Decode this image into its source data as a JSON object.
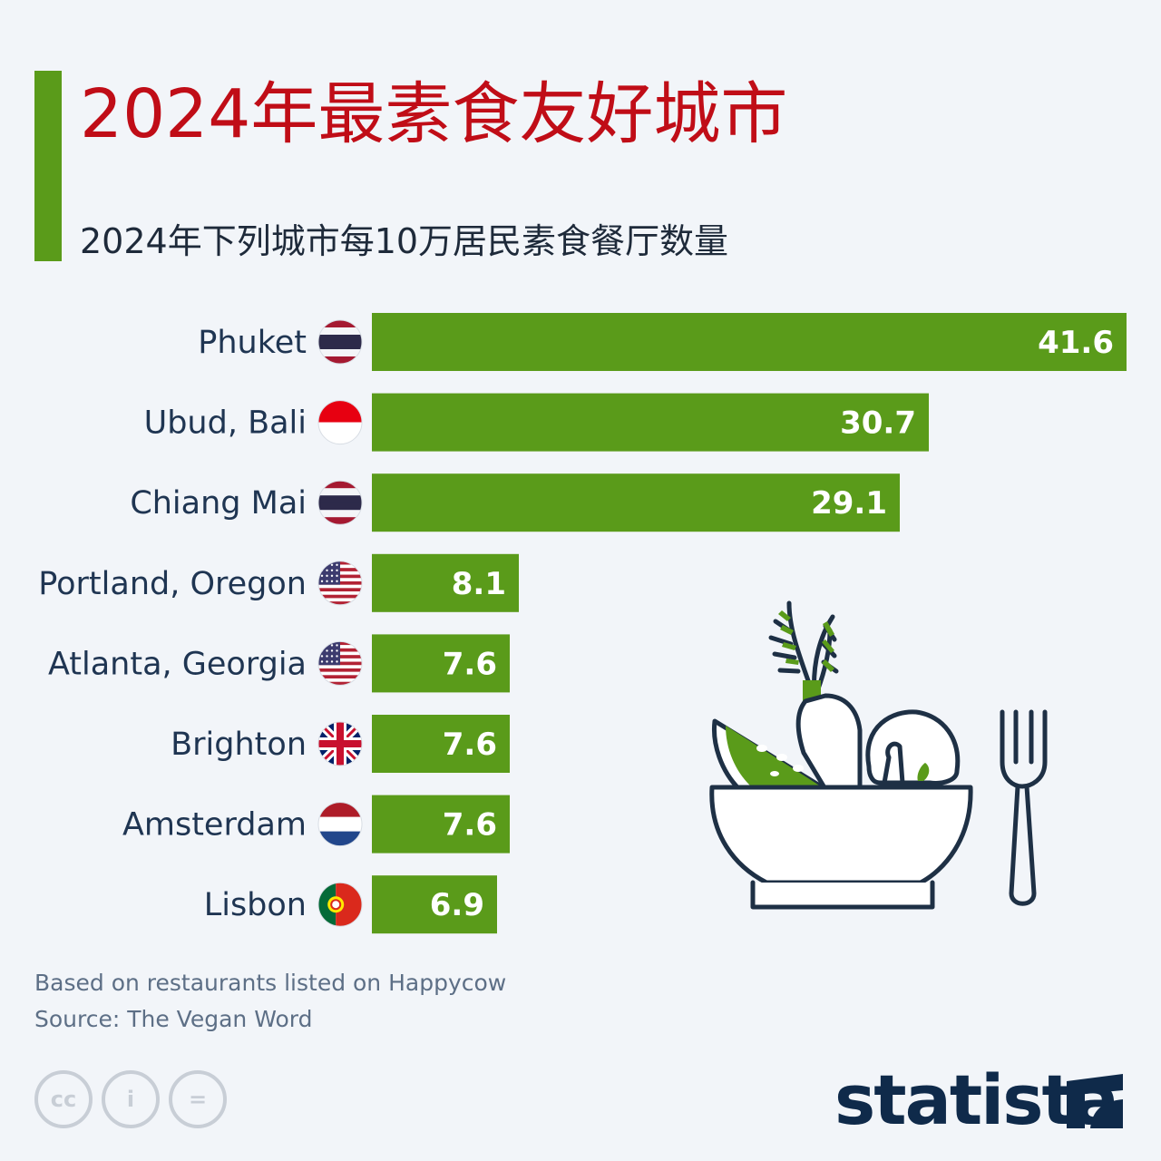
{
  "header": {
    "title": "2024年最素食友好城市",
    "subtitle": "2024年下列城市每10万居民素食餐厅数量"
  },
  "chart_data": {
    "type": "bar",
    "orientation": "horizontal",
    "title": "2024年最素食友好城市",
    "subtitle": "2024年下列城市每10万居民素食餐厅数量",
    "categories": [
      "Phuket",
      "Ubud, Bali",
      "Chiang Mai",
      "Portland, Oregon",
      "Atlanta, Georgia",
      "Brighton",
      "Amsterdam",
      "Lisbon"
    ],
    "values": [
      41.6,
      30.7,
      29.1,
      8.1,
      7.6,
      7.6,
      7.6,
      6.9
    ],
    "value_labels": [
      "41.6",
      "30.7",
      "29.1",
      "8.1",
      "7.6",
      "7.6",
      "7.6",
      "6.9"
    ],
    "flags": [
      "thailand-flag-icon",
      "indonesia-flag-icon",
      "thailand-flag-icon",
      "usa-flag-icon",
      "usa-flag-icon",
      "uk-flag-icon",
      "netherlands-flag-icon",
      "portugal-flag-icon"
    ],
    "bar_color": "#5a9b1a",
    "xlim": [
      0,
      41.6
    ],
    "grid": false,
    "legend": "none"
  },
  "footer": {
    "note": "Based on restaurants listed on Happycow",
    "source": "Source: The Vegan Word",
    "brand": "statista",
    "license_icons": [
      "cc-icon",
      "attribution-icon",
      "no-derivatives-icon"
    ]
  },
  "colors": {
    "accent": "#5a9b1a",
    "title": "#c00d17",
    "background": "#f2f5f9",
    "illustration_stroke": "#1e3045"
  }
}
